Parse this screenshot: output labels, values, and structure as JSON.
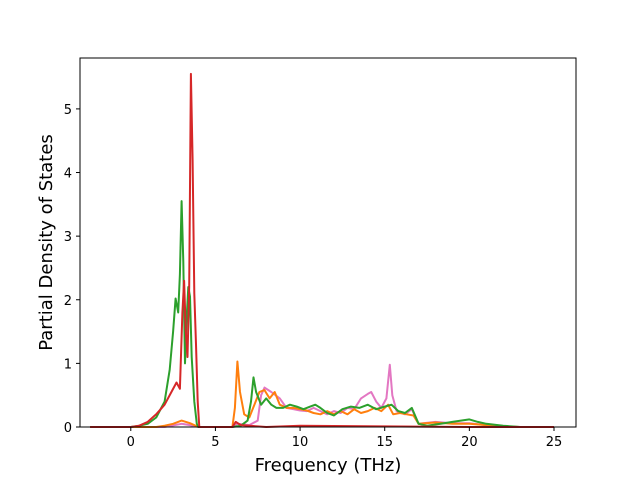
{
  "chart_data": {
    "type": "line",
    "xlabel": "Frequency (THz)",
    "ylabel": "Partial Density of States",
    "xlim": [
      -3.0,
      26.3
    ],
    "ylim": [
      0,
      5.8
    ],
    "xticks": [
      0,
      5,
      10,
      15,
      20,
      25
    ],
    "yticks": [
      0,
      1,
      2,
      3,
      4,
      5
    ],
    "grid": false,
    "series": [
      {
        "color": "#e377c2",
        "points": [
          [
            -2.4,
            0
          ],
          [
            0,
            0
          ],
          [
            2,
            0
          ],
          [
            3,
            0.05
          ],
          [
            3.5,
            0.03
          ],
          [
            4,
            0
          ],
          [
            6,
            0
          ],
          [
            6.3,
            0.05
          ],
          [
            7,
            0.03
          ],
          [
            7.5,
            0.1
          ],
          [
            7.7,
            0.5
          ],
          [
            7.9,
            0.62
          ],
          [
            8.3,
            0.55
          ],
          [
            8.8,
            0.45
          ],
          [
            9.2,
            0.3
          ],
          [
            9.6,
            0.28
          ],
          [
            10,
            0.26
          ],
          [
            10.4,
            0.25
          ],
          [
            10.8,
            0.3
          ],
          [
            11.2,
            0.25
          ],
          [
            11.6,
            0.2
          ],
          [
            12,
            0.25
          ],
          [
            12.4,
            0.22
          ],
          [
            12.8,
            0.3
          ],
          [
            13.2,
            0.28
          ],
          [
            13.6,
            0.45
          ],
          [
            14,
            0.52
          ],
          [
            14.2,
            0.55
          ],
          [
            14.5,
            0.4
          ],
          [
            14.8,
            0.3
          ],
          [
            15.1,
            0.45
          ],
          [
            15.3,
            0.98
          ],
          [
            15.45,
            0.5
          ],
          [
            15.7,
            0.25
          ],
          [
            16.2,
            0.2
          ],
          [
            16.6,
            0.28
          ],
          [
            17,
            0.05
          ],
          [
            18,
            0.08
          ],
          [
            19,
            0.06
          ],
          [
            20,
            0.06
          ],
          [
            21,
            0.03
          ],
          [
            22,
            0.01
          ],
          [
            23,
            0
          ],
          [
            25,
            0
          ]
        ]
      },
      {
        "color": "#ff7f0e",
        "points": [
          [
            -2.4,
            0
          ],
          [
            0,
            0
          ],
          [
            1.5,
            0
          ],
          [
            2,
            0.02
          ],
          [
            2.5,
            0.05
          ],
          [
            3,
            0.1
          ],
          [
            3.5,
            0.06
          ],
          [
            4,
            0
          ],
          [
            6,
            0
          ],
          [
            6.15,
            0.3
          ],
          [
            6.3,
            1.03
          ],
          [
            6.45,
            0.55
          ],
          [
            6.7,
            0.2
          ],
          [
            7,
            0.15
          ],
          [
            7.3,
            0.35
          ],
          [
            7.6,
            0.55
          ],
          [
            7.9,
            0.58
          ],
          [
            8.2,
            0.45
          ],
          [
            8.5,
            0.55
          ],
          [
            8.8,
            0.35
          ],
          [
            9.2,
            0.3
          ],
          [
            9.6,
            0.3
          ],
          [
            10,
            0.28
          ],
          [
            10.4,
            0.26
          ],
          [
            10.8,
            0.22
          ],
          [
            11.2,
            0.2
          ],
          [
            11.6,
            0.25
          ],
          [
            12,
            0.2
          ],
          [
            12.4,
            0.25
          ],
          [
            12.8,
            0.2
          ],
          [
            13.2,
            0.28
          ],
          [
            13.6,
            0.22
          ],
          [
            14,
            0.25
          ],
          [
            14.4,
            0.3
          ],
          [
            14.8,
            0.25
          ],
          [
            15.2,
            0.35
          ],
          [
            15.5,
            0.2
          ],
          [
            15.9,
            0.22
          ],
          [
            16.3,
            0.2
          ],
          [
            16.7,
            0.18
          ],
          [
            17,
            0.05
          ],
          [
            18,
            0.07
          ],
          [
            19,
            0.05
          ],
          [
            20,
            0.05
          ],
          [
            21,
            0.03
          ],
          [
            22,
            0.01
          ],
          [
            23,
            0
          ],
          [
            25,
            0
          ]
        ]
      },
      {
        "color": "#2ca02c",
        "points": [
          [
            -2.4,
            0
          ],
          [
            0,
            0
          ],
          [
            0.5,
            0.02
          ],
          [
            1,
            0.05
          ],
          [
            1.5,
            0.15
          ],
          [
            2,
            0.4
          ],
          [
            2.3,
            0.9
          ],
          [
            2.5,
            1.5
          ],
          [
            2.65,
            2.02
          ],
          [
            2.8,
            1.8
          ],
          [
            2.9,
            2.4
          ],
          [
            3.0,
            3.55
          ],
          [
            3.1,
            2.6
          ],
          [
            3.2,
            1.0
          ],
          [
            3.3,
            1.7
          ],
          [
            3.4,
            2.2
          ],
          [
            3.5,
            2.05
          ],
          [
            3.6,
            1.1
          ],
          [
            3.75,
            0.4
          ],
          [
            3.9,
            0.05
          ],
          [
            4.0,
            0
          ],
          [
            6,
            0
          ],
          [
            6.5,
            0.02
          ],
          [
            6.9,
            0.1
          ],
          [
            7.1,
            0.4
          ],
          [
            7.25,
            0.78
          ],
          [
            7.4,
            0.55
          ],
          [
            7.7,
            0.35
          ],
          [
            8,
            0.45
          ],
          [
            8.3,
            0.35
          ],
          [
            8.6,
            0.3
          ],
          [
            9,
            0.3
          ],
          [
            9.4,
            0.35
          ],
          [
            9.8,
            0.32
          ],
          [
            10.2,
            0.28
          ],
          [
            10.6,
            0.32
          ],
          [
            10.9,
            0.35
          ],
          [
            11.2,
            0.3
          ],
          [
            11.6,
            0.22
          ],
          [
            12,
            0.18
          ],
          [
            12.5,
            0.28
          ],
          [
            13,
            0.32
          ],
          [
            13.5,
            0.3
          ],
          [
            14,
            0.35
          ],
          [
            14.5,
            0.28
          ],
          [
            15,
            0.32
          ],
          [
            15.4,
            0.35
          ],
          [
            15.8,
            0.25
          ],
          [
            16.2,
            0.22
          ],
          [
            16.6,
            0.3
          ],
          [
            17,
            0.05
          ],
          [
            17.5,
            0.02
          ],
          [
            18,
            0.04
          ],
          [
            18.5,
            0.06
          ],
          [
            19,
            0.08
          ],
          [
            19.5,
            0.1
          ],
          [
            20,
            0.12
          ],
          [
            20.5,
            0.08
          ],
          [
            21,
            0.05
          ],
          [
            22,
            0.02
          ],
          [
            23,
            0
          ],
          [
            25,
            0
          ]
        ]
      },
      {
        "color": "#d62728",
        "points": [
          [
            -2.4,
            0
          ],
          [
            0,
            0
          ],
          [
            0.5,
            0.02
          ],
          [
            1,
            0.08
          ],
          [
            1.5,
            0.2
          ],
          [
            2,
            0.35
          ],
          [
            2.4,
            0.55
          ],
          [
            2.7,
            0.7
          ],
          [
            2.9,
            0.6
          ],
          [
            3.05,
            1.8
          ],
          [
            3.15,
            2.3
          ],
          [
            3.25,
            1.5
          ],
          [
            3.35,
            1.1
          ],
          [
            3.45,
            2.2
          ],
          [
            3.55,
            5.55
          ],
          [
            3.65,
            4.2
          ],
          [
            3.75,
            2.1
          ],
          [
            3.85,
            1.3
          ],
          [
            3.95,
            0.4
          ],
          [
            4.05,
            0
          ],
          [
            6,
            0
          ],
          [
            6.2,
            0.08
          ],
          [
            6.5,
            0.03
          ],
          [
            7,
            0.02
          ],
          [
            7.5,
            0.01
          ],
          [
            8,
            0
          ],
          [
            10,
            0.02
          ],
          [
            15,
            0.01
          ],
          [
            20,
            0
          ],
          [
            25,
            0
          ]
        ]
      }
    ]
  }
}
